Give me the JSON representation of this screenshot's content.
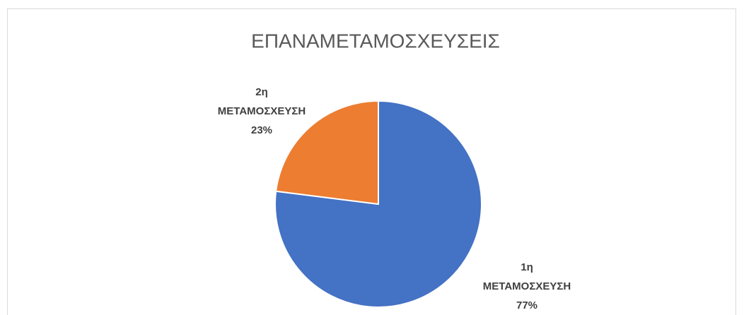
{
  "chart_data": {
    "type": "pie",
    "title": "ΕΠΑΝΑΜΕΤΑΜΟΣΧΕΥΣΕΙΣ",
    "categories": [
      "1η ΜΕΤΑΜΟΣΧΕΥΣΗ",
      "2η ΜΕΤΑΜΟΣΧΕΥΣΗ"
    ],
    "values": [
      77,
      23
    ],
    "value_labels": [
      "77%",
      "23%"
    ],
    "colors": [
      "#4472c4",
      "#ed7d31"
    ]
  }
}
